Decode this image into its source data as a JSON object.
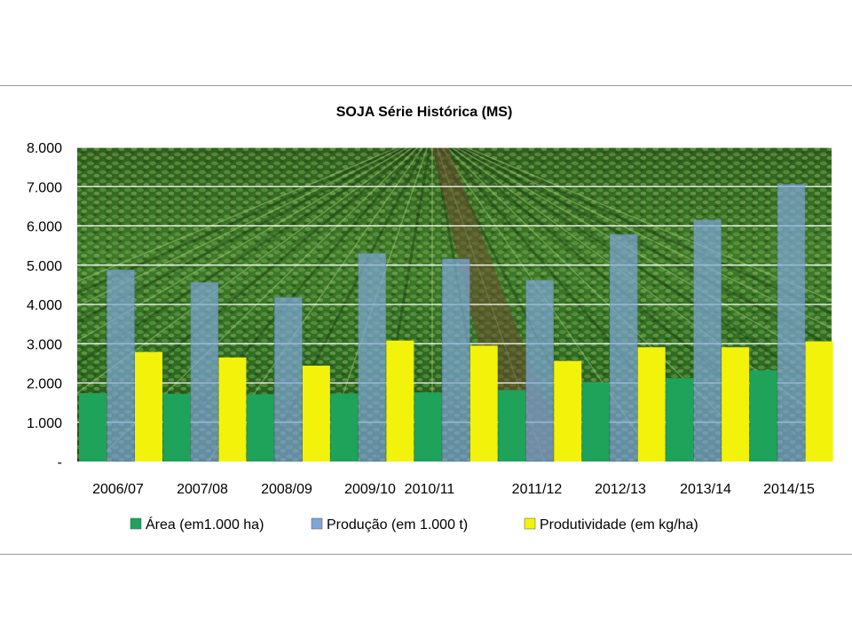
{
  "chart_data": {
    "type": "bar",
    "title": "SOJA Série Histórica (MS)",
    "xlabel": "",
    "ylabel": "",
    "ylim": [
      0,
      8000
    ],
    "yticks": [
      0,
      1000,
      2000,
      3000,
      4000,
      5000,
      6000,
      7000,
      8000
    ],
    "ytick_labels": [
      "-",
      "1.000",
      "2.000",
      "3.000",
      "4.000",
      "5.000",
      "6.000",
      "7.000",
      "8.000"
    ],
    "grid": true,
    "legend_position": "bottom",
    "background": "soybean field photo",
    "categories": [
      "2006/07",
      "2007/08",
      "2008/09",
      "2009/10",
      "2010/11",
      "2011/12",
      "2012/13",
      "2013/14",
      "2014/15"
    ],
    "series": [
      {
        "name": "Área (em1.000 ha)",
        "color": "#1fa25a",
        "values": [
          1740,
          1720,
          1710,
          1730,
          1760,
          1820,
          2010,
          2120,
          2320
        ]
      },
      {
        "name": "Produção (em 1.000 t)",
        "color": "#7ea6d6",
        "values": [
          4880,
          4560,
          4180,
          5300,
          5160,
          4620,
          5780,
          6150,
          7060
        ]
      },
      {
        "name": "Produtividade (em kg/ha)",
        "color": "#f2f20a",
        "values": [
          2790,
          2650,
          2440,
          3080,
          2950,
          2560,
          2910,
          2910,
          3060
        ]
      }
    ]
  }
}
